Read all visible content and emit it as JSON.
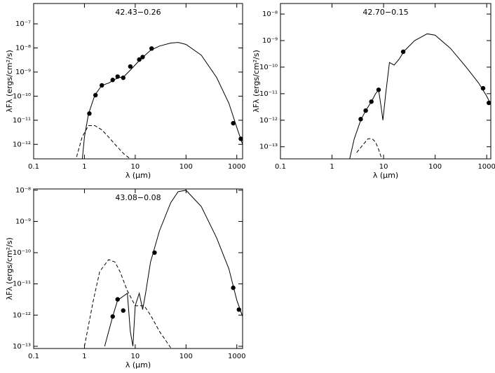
{
  "chart_data": [
    {
      "type": "scatter",
      "title": "42.43−0.26",
      "xlabel": "λ (μm)",
      "ylabel": "λFλ (ergs/cm²/s)",
      "xlog": true,
      "ylog": true,
      "xlim": [
        0.1,
        1300
      ],
      "ylim": [
        2.5e-13,
        7e-07
      ],
      "xticks": [
        0.1,
        1,
        10,
        100,
        1000
      ],
      "yticks": [
        {
          "value": 1e-12,
          "label": "10⁻¹²"
        },
        {
          "value": 1e-11,
          "label": "10⁻¹¹"
        },
        {
          "value": 1e-10,
          "label": "10⁻¹⁰"
        },
        {
          "value": 1e-09,
          "label": "10⁻⁹"
        },
        {
          "value": 1e-08,
          "label": "10⁻⁸"
        },
        {
          "value": 1e-07,
          "label": "10⁻⁷"
        }
      ],
      "series": [
        {
          "linestyle": "solid",
          "color": "#000000",
          "x": [
            0.9,
            1.0,
            1.2,
            1.6,
            2.2,
            3,
            4,
            5,
            6,
            8,
            12,
            20,
            30,
            50,
            70,
            100,
            200,
            400,
            700,
            1000,
            1300
          ],
          "values": [
            2e-13,
            2e-12,
            1.8e-11,
            1.1e-10,
            2.8e-10,
            3.5e-10,
            5e-10,
            6e-10,
            6.5e-10,
            1.2e-09,
            3e-09,
            8e-09,
            1.2e-08,
            1.6e-08,
            1.7e-08,
            1.4e-08,
            5e-09,
            6e-10,
            5e-11,
            5e-12,
            1e-12
          ]
        },
        {
          "linestyle": "dashed",
          "color": "#000000",
          "x": [
            0.7,
            0.9,
            1.2,
            1.6,
            2.2,
            3,
            4,
            5,
            6,
            8
          ],
          "values": [
            3e-13,
            2e-12,
            6e-12,
            6e-12,
            4e-12,
            2e-12,
            1e-12,
            6e-13,
            4e-13,
            2.5e-13
          ]
        },
        {
          "marker": true,
          "color": "#000000",
          "x": [
            1.25,
            1.65,
            2.2,
            3.6,
            4.5,
            5.8,
            8.0,
            12,
            14,
            21,
            850,
            1200
          ],
          "values": [
            1.9e-11,
            1.1e-10,
            2.8e-10,
            4.7e-10,
            6.5e-10,
            5.8e-10,
            1.7e-09,
            3.3e-09,
            4.2e-09,
            9.5e-09,
            7.5e-12,
            1.7e-12
          ]
        }
      ]
    },
    {
      "type": "scatter",
      "title": "42.70−0.15",
      "xlabel": "λ (μm)",
      "ylabel": "λFλ (ergs/cm²/s)",
      "xlog": true,
      "ylog": true,
      "xlim": [
        0.1,
        1200
      ],
      "ylim": [
        3.5e-14,
        2.5e-08
      ],
      "xticks": [
        0.1,
        1,
        10,
        100,
        1000
      ],
      "yticks": [
        {
          "value": 1e-13,
          "label": "10⁻¹³"
        },
        {
          "value": 1e-12,
          "label": "10⁻¹²"
        },
        {
          "value": 1e-11,
          "label": "10⁻¹¹"
        },
        {
          "value": 1e-10,
          "label": "10⁻¹⁰"
        },
        {
          "value": 1e-09,
          "label": "10⁻⁹"
        },
        {
          "value": 1e-08,
          "label": "10⁻⁸"
        }
      ],
      "series": [
        {
          "linestyle": "solid",
          "color": "#000000",
          "x": [
            2.2,
            2.7,
            3.6,
            4.5,
            5.8,
            7,
            8,
            9,
            9.7,
            11,
            13,
            16,
            20,
            25,
            40,
            70,
            100,
            200,
            400,
            700,
            1000,
            1200
          ],
          "values": [
            3.5e-14,
            2e-13,
            1e-12,
            2.3e-12,
            5e-12,
            1e-11,
            1.4e-11,
            3e-12,
            1e-12,
            1e-11,
            1.5e-10,
            1.2e-10,
            2e-10,
            4e-10,
            1e-09,
            1.8e-09,
            1.6e-09,
            5e-10,
            1e-10,
            2.5e-11,
            8e-12,
            4e-12
          ]
        },
        {
          "linestyle": "dashed",
          "color": "#000000",
          "x": [
            3,
            4,
            5,
            6,
            7,
            8,
            9
          ],
          "values": [
            6e-14,
            1.2e-13,
            2e-13,
            2e-13,
            1.5e-13,
            8e-14,
            4e-14
          ]
        },
        {
          "marker": true,
          "color": "#000000",
          "x": [
            3.6,
            4.5,
            5.8,
            8,
            24,
            850,
            1100
          ],
          "values": [
            1.1e-12,
            2.3e-12,
            5e-12,
            1.4e-11,
            3.8e-10,
            1.6e-11,
            4.5e-12
          ]
        }
      ]
    },
    {
      "type": "scatter",
      "title": "43.08−0.08",
      "xlabel": "λ (μm)",
      "ylabel": "λFλ (ergs/cm²/s)",
      "xlog": true,
      "ylog": true,
      "xlim": [
        0.1,
        1300
      ],
      "ylim": [
        8.5e-14,
        1.1e-08
      ],
      "xticks": [
        0.1,
        1,
        10,
        100,
        1000
      ],
      "yticks": [
        {
          "value": 1e-13,
          "label": "10⁻¹³"
        },
        {
          "value": 1e-12,
          "label": "10⁻¹²"
        },
        {
          "value": 1e-11,
          "label": "10⁻¹¹"
        },
        {
          "value": 1e-10,
          "label": "10⁻¹⁰"
        },
        {
          "value": 1e-09,
          "label": "10⁻⁹"
        },
        {
          "value": 1e-08,
          "label": "10⁻⁸"
        }
      ],
      "series": [
        {
          "linestyle": "solid",
          "color": "#000000",
          "x": [
            2.5,
            3,
            3.6,
            4.5,
            5.8,
            7,
            8,
            9,
            10,
            12,
            14,
            16,
            20,
            30,
            50,
            70,
            100,
            200,
            400,
            700,
            1000,
            1300
          ],
          "values": [
            1e-13,
            3e-13,
            9e-13,
            3e-12,
            4e-12,
            5e-12,
            3e-13,
            1e-13,
            2e-12,
            5e-12,
            1.5e-12,
            5e-12,
            5e-11,
            5e-10,
            4e-09,
            9e-09,
            1e-08,
            3e-09,
            3e-10,
            3e-11,
            3e-12,
            9e-13
          ]
        },
        {
          "linestyle": "dashed",
          "color": "#000000",
          "x": [
            1,
            1.5,
            2,
            3,
            4,
            5,
            7,
            10,
            15,
            20,
            30,
            50
          ],
          "values": [
            1e-13,
            3e-12,
            2.5e-11,
            6e-11,
            5e-11,
            2.5e-11,
            6e-12,
            2e-12,
            2e-12,
            1e-12,
            3e-13,
            9e-14
          ]
        },
        {
          "marker": true,
          "color": "#000000",
          "x": [
            3.6,
            4.5,
            5.8,
            24,
            850,
            1100
          ],
          "values": [
            9e-13,
            3.2e-12,
            1.4e-12,
            1e-10,
            7.5e-12,
            1.5e-12
          ]
        }
      ]
    }
  ]
}
